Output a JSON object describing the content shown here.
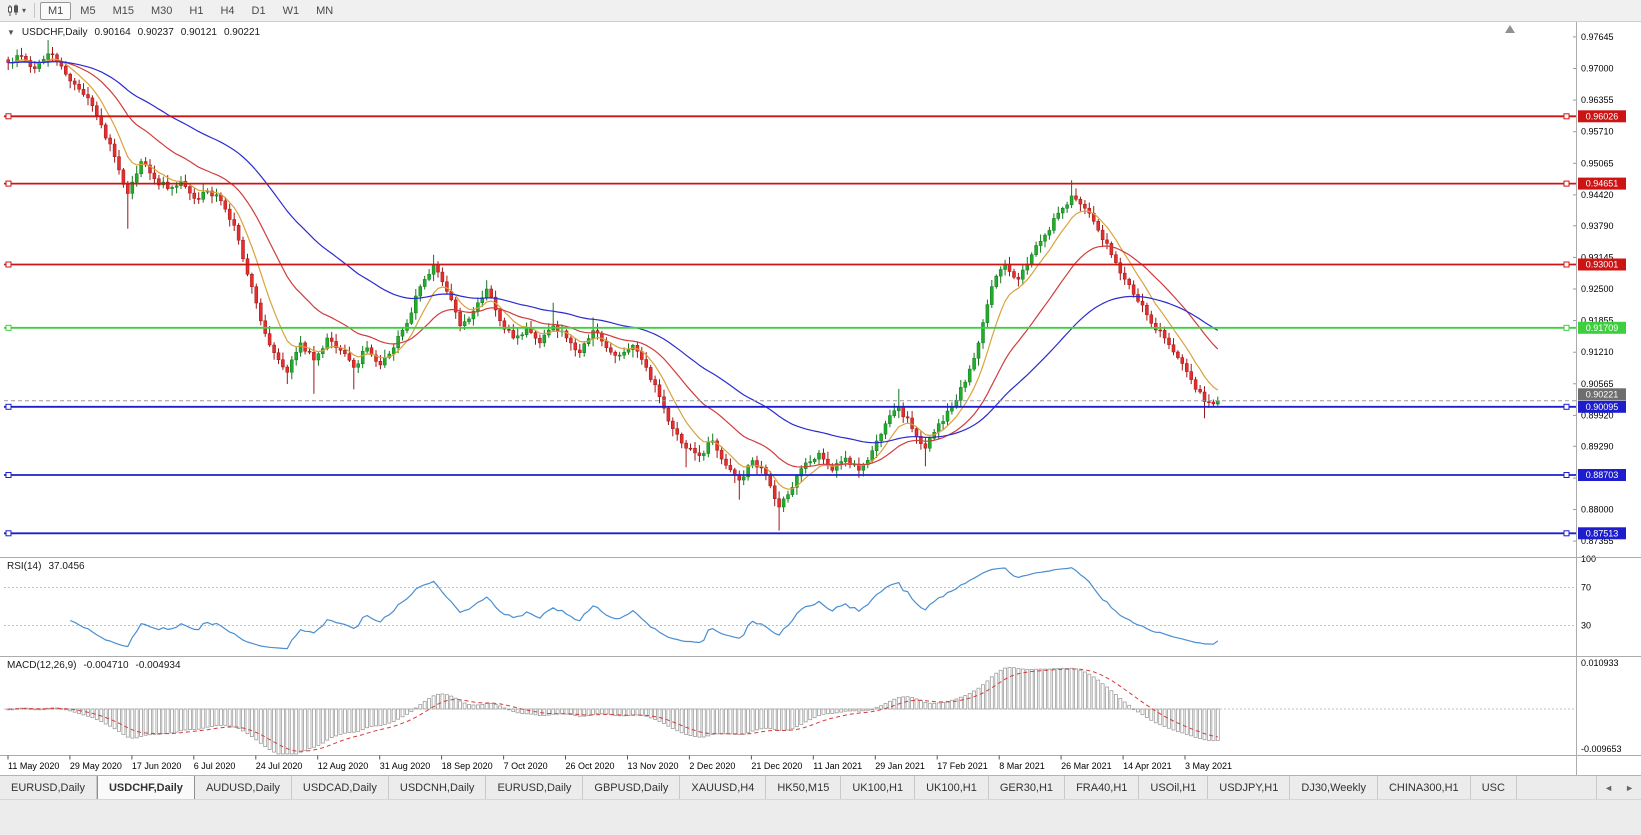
{
  "icons": {
    "chart_type": "candlestick-chart-icon",
    "caret": "▾",
    "collapse": "▼",
    "tab_scroll_left": "◄",
    "tab_scroll_right": "►",
    "shift_marker": "▲"
  },
  "toolbar": {
    "timeframes": {
      "items": [
        "M1",
        "M5",
        "M15",
        "M30",
        "H1",
        "H4",
        "D1",
        "W1",
        "MN"
      ],
      "active": "M1"
    }
  },
  "chart_header": {
    "symbol": "USDCHF,Daily",
    "open": "0.90164",
    "high": "0.90237",
    "low": "0.90121",
    "close": "0.90221"
  },
  "price_axis": {
    "labels": [
      "0.97645",
      "0.97000",
      "0.96355",
      "0.95710",
      "0.95065",
      "0.94420",
      "0.93790",
      "0.93145",
      "0.92500",
      "0.91855",
      "0.91210",
      "0.90565",
      "0.89920",
      "0.89290",
      "0.88640",
      "0.88000",
      "0.87355"
    ]
  },
  "hlines": [
    {
      "label": "0.96026",
      "value": 0.96026,
      "color": "#cc1414"
    },
    {
      "label": "0.94651",
      "value": 0.94651,
      "color": "#cc1414"
    },
    {
      "label": "0.93001",
      "value": 0.93001,
      "color": "#cc1414"
    },
    {
      "label": "0.91709",
      "value": 0.91709,
      "color": "#3ecf3e"
    },
    {
      "label": "0.90095",
      "value": 0.90095,
      "color": "#1d1dce"
    },
    {
      "label": "0.88703",
      "value": 0.88703,
      "color": "#1d1dce"
    },
    {
      "label": "0.87513",
      "value": 0.87513,
      "color": "#1d1dce"
    }
  ],
  "current_price": {
    "label": "0.90221",
    "value": 0.90221,
    "line_color": "#9a9a9a",
    "badge_color": "#6e6e6e"
  },
  "rsi_pane": {
    "name": "RSI(14)",
    "value": "37.0456",
    "levels": [
      70,
      30
    ],
    "axis": [
      {
        "text": "100",
        "value": 100
      },
      {
        "text": "70",
        "value": 70
      },
      {
        "text": "30",
        "value": 30
      }
    ],
    "line_color": "#4a8ed2"
  },
  "macd_pane": {
    "name": "MACD(12,26,9)",
    "value_main": "-0.004710",
    "value_signal": "-0.004934",
    "axis": [
      {
        "text": "0.010933",
        "value": 0.010933
      },
      {
        "text": "-0.009653",
        "value": -0.009653
      }
    ],
    "hist_color": "#9e9e9e",
    "signal_color": "#d43c3c"
  },
  "time_axis": {
    "labels": [
      "11 May 2020",
      "29 May 2020",
      "17 Jun 2020",
      "6 Jul 2020",
      "24 Jul 2020",
      "12 Aug 2020",
      "31 Aug 2020",
      "18 Sep 2020",
      "7 Oct 2020",
      "26 Oct 2020",
      "13 Nov 2020",
      "2 Dec 2020",
      "21 Dec 2020",
      "11 Jan 2021",
      "29 Jan 2021",
      "17 Feb 2021",
      "8 Mar 2021",
      "26 Mar 2021",
      "14 Apr 2021",
      "3 May 2021"
    ]
  },
  "tabs": {
    "active_index": 1,
    "items": [
      "EURUSD,Daily",
      "USDCHF,Daily",
      "AUDUSD,Daily",
      "USDCAD,Daily",
      "USDCNH,Daily",
      "EURUSD,Daily",
      "GBPUSD,Daily",
      "XAUUSD,H4",
      "HK50,M15",
      "UK100,H1",
      "UK100,H1",
      "GER30,H1",
      "FRA40,H1",
      "USOil,H1",
      "USDJPY,H1",
      "DJ30,Weekly",
      "CHINA300,H1",
      "USC"
    ]
  },
  "chart_data": {
    "type": "candlestick",
    "symbol": "USDCHF",
    "timeframe": "Daily",
    "x_range": [
      "11 May 2020",
      "14 May 2021"
    ],
    "price_scale": {
      "top": 0.9795,
      "bottom": 0.8705
    },
    "bull_color": "#1fae2c",
    "bear_color": "#e62e2e",
    "bull_edge": "#14771d",
    "bear_edge": "#9c1616",
    "upsample": 3,
    "key_closes": [
      0.9712,
      0.9725,
      0.97,
      0.973,
      0.9705,
      0.9668,
      0.964,
      0.9585,
      0.952,
      0.9445,
      0.951,
      0.9475,
      0.9455,
      0.947,
      0.9435,
      0.945,
      0.943,
      0.938,
      0.928,
      0.9185,
      0.912,
      0.908,
      0.914,
      0.9105,
      0.915,
      0.9125,
      0.909,
      0.913,
      0.9095,
      0.913,
      0.918,
      0.9255,
      0.93,
      0.9245,
      0.9175,
      0.9205,
      0.925,
      0.9185,
      0.915,
      0.917,
      0.914,
      0.9175,
      0.915,
      0.912,
      0.9165,
      0.913,
      0.9115,
      0.9135,
      0.909,
      0.903,
      0.8965,
      0.8925,
      0.891,
      0.894,
      0.889,
      0.886,
      0.89,
      0.887,
      0.8805,
      0.8845,
      0.8895,
      0.8915,
      0.888,
      0.8905,
      0.888,
      0.892,
      0.8975,
      0.901,
      0.8965,
      0.8925,
      0.8975,
      0.901,
      0.906,
      0.914,
      0.9255,
      0.93,
      0.927,
      0.932,
      0.936,
      0.9405,
      0.944,
      0.9415,
      0.937,
      0.932,
      0.927,
      0.9225,
      0.918,
      0.915,
      0.911,
      0.9065,
      0.902,
      0.90221
    ],
    "spike_lows": {
      "9": 0.9373,
      "21": 0.9056,
      "23": 0.9036,
      "26": 0.9045,
      "51": 0.8886,
      "55": 0.882,
      "58": 0.8757,
      "69": 0.8888,
      "90": 0.8986
    },
    "spike_highs": {
      "3": 0.9758,
      "32": 0.932,
      "36": 0.9268,
      "41": 0.9222,
      "44": 0.9192,
      "67": 0.9046,
      "80": 0.9472
    },
    "moving_averages": [
      {
        "name": "fast",
        "period": 8,
        "color": "#d9a23c"
      },
      {
        "name": "mid",
        "period": 24,
        "color": "#d23c3c"
      },
      {
        "name": "slow",
        "period": 55,
        "color": "#2b2bd0"
      }
    ],
    "rsi": {
      "period": 14,
      "current": 37.0456
    },
    "macd": {
      "fast": 12,
      "slow": 26,
      "signal": 9,
      "current": -0.00471,
      "current_signal": -0.004934,
      "scale_max": 0.010933,
      "scale_min": -0.009653
    }
  }
}
